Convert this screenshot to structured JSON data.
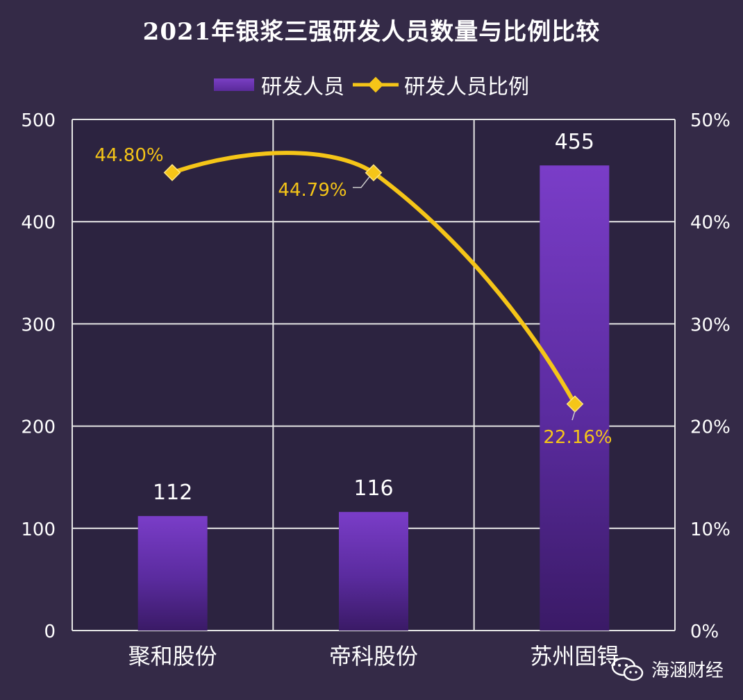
{
  "chart_data": {
    "type": "bar",
    "title": "2021年银浆三强研发人员数量与比例比较",
    "categories": [
      "聚和股份",
      "帝科股份",
      "苏州固锝"
    ],
    "series": [
      {
        "name": "研发人员",
        "type": "bar",
        "values": [
          112,
          116,
          455
        ],
        "labels": [
          "112",
          "116",
          "455"
        ],
        "axis": "left",
        "color": "#6f34b8"
      },
      {
        "name": "研发人员比例",
        "type": "line",
        "values": [
          44.8,
          44.79,
          22.16
        ],
        "labels": [
          "44.80%",
          "44.79%",
          "22.16%"
        ],
        "axis": "right",
        "color": "#f5c518"
      }
    ],
    "y_left": {
      "ylim": [
        0,
        500
      ],
      "ticks": [
        "0",
        "100",
        "200",
        "300",
        "400",
        "500"
      ]
    },
    "y_right": {
      "ylim": [
        0,
        50
      ],
      "ticks": [
        "0%",
        "10%",
        "20%",
        "30%",
        "40%",
        "50%"
      ]
    },
    "grid": true,
    "legend_position": "top"
  },
  "colors": {
    "background": "#342a47",
    "plot_background": "#2c2340",
    "grid": "#e6e6e6",
    "bar_top": "#7a3dc8",
    "bar_bottom": "#3a1a66",
    "line": "#f5c518",
    "line_label": "#f5c518",
    "text": "#ffffff"
  },
  "watermark": {
    "text": "海涵财经",
    "icon": "wechat-icon"
  }
}
